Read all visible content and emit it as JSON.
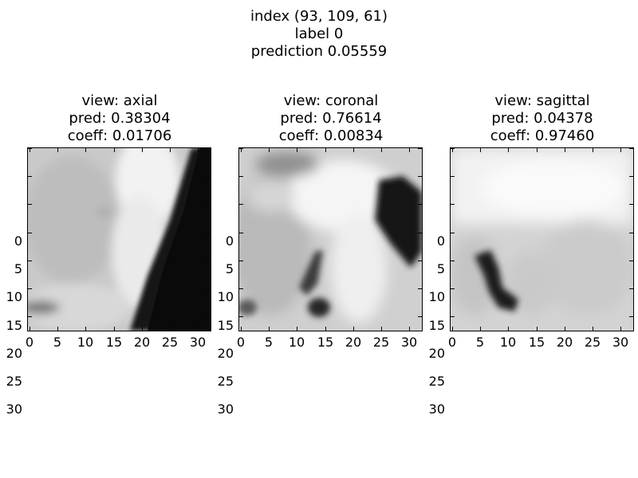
{
  "figure": {
    "title_line1": "index (93, 109, 61)",
    "title_line2": "label 0",
    "title_line3": "prediction 0.05559"
  },
  "panels": [
    {
      "view": "view: axial",
      "pred": "pred: 0.38304",
      "coeff": "coeff: 0.01706",
      "colormap": "gray"
    },
    {
      "view": "view: coronal",
      "pred": "pred: 0.76614",
      "coeff": "coeff: 0.00834",
      "colormap": "gray"
    },
    {
      "view": "view: sagittal",
      "pred": "pred: 0.04378",
      "coeff": "coeff: 0.97460",
      "colormap": "gray"
    }
  ],
  "axis": {
    "x_ticks": [
      "0",
      "5",
      "10",
      "15",
      "20",
      "25",
      "30"
    ],
    "y_ticks": [
      "0",
      "5",
      "10",
      "15",
      "20",
      "25",
      "30"
    ],
    "range": [
      0,
      32
    ]
  }
}
